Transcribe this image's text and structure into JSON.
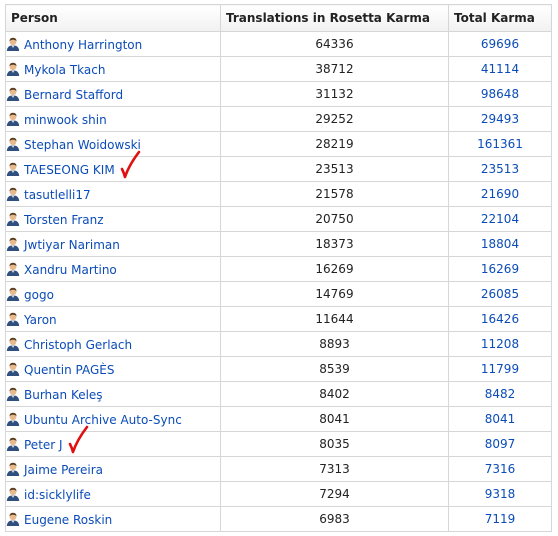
{
  "headers": {
    "person": "Person",
    "translations": "Translations in Rosetta Karma",
    "total": "Total Karma"
  },
  "icons": {
    "person": "person-icon",
    "annotation": "red-checkmark-icon"
  },
  "colors": {
    "link": "#0b4cb8",
    "annotation": "#e01010"
  },
  "rows": [
    {
      "name": "Anthony Harrington",
      "translations": "64336",
      "total": "69696"
    },
    {
      "name": "Mykola Tkach",
      "translations": "38712",
      "total": "41114"
    },
    {
      "name": "Bernard Stafford",
      "translations": "31132",
      "total": "98648"
    },
    {
      "name": "minwook shin",
      "translations": "29252",
      "total": "29493"
    },
    {
      "name": "Stephan Woidowski",
      "translations": "28219",
      "total": "161361"
    },
    {
      "name": "TAESEONG KIM",
      "translations": "23513",
      "total": "23513",
      "marked": true
    },
    {
      "name": "tasutlelli17",
      "translations": "21578",
      "total": "21690"
    },
    {
      "name": "Torsten Franz",
      "translations": "20750",
      "total": "22104"
    },
    {
      "name": "Jwtiyar Nariman",
      "translations": "18373",
      "total": "18804"
    },
    {
      "name": "Xandru Martino",
      "translations": "16269",
      "total": "16269"
    },
    {
      "name": "gogo",
      "translations": "14769",
      "total": "26085"
    },
    {
      "name": "Yaron",
      "translations": "11644",
      "total": "16426"
    },
    {
      "name": "Christoph Gerlach",
      "translations": "8893",
      "total": "11208"
    },
    {
      "name": "Quentin PAGÈS",
      "translations": "8539",
      "total": "11799"
    },
    {
      "name": "Burhan Keleş",
      "translations": "8402",
      "total": "8482"
    },
    {
      "name": "Ubuntu Archive Auto-Sync",
      "translations": "8041",
      "total": "8041"
    },
    {
      "name": "Peter J",
      "translations": "8035",
      "total": "8097",
      "marked": true
    },
    {
      "name": "Jaime Pereira",
      "translations": "7313",
      "total": "7316"
    },
    {
      "name": "id:sicklylife",
      "translations": "7294",
      "total": "9318"
    },
    {
      "name": "Eugene Roskin",
      "translations": "6983",
      "total": "7119"
    }
  ]
}
